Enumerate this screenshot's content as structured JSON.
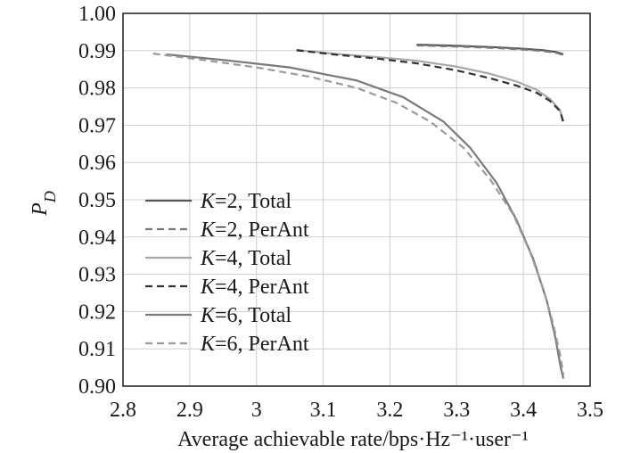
{
  "chart_data": {
    "type": "line",
    "title": "",
    "xlabel": "Average achievable rate/bps·Hz⁻¹·user⁻¹",
    "ylabel_main": "P",
    "ylabel_sub": "D",
    "xlim": [
      2.8,
      3.5
    ],
    "ylim": [
      0.9,
      1.0
    ],
    "x_ticks": [
      "2.8",
      "2.9",
      "3",
      "3.1",
      "3.2",
      "3.3",
      "3.4",
      "3.5"
    ],
    "y_ticks": [
      "0.90",
      "0.91",
      "0.92",
      "0.93",
      "0.94",
      "0.95",
      "0.96",
      "0.97",
      "0.98",
      "0.99",
      "1.00"
    ],
    "grid": true,
    "legend_position": "bottom-left",
    "series": [
      {
        "k_label": "K",
        "k_value": "=2, Total",
        "color": "#555555",
        "dash": false,
        "x": [
          3.24,
          3.3,
          3.36,
          3.4,
          3.43,
          3.45,
          3.46
        ],
        "y": [
          0.9916,
          0.9913,
          0.9909,
          0.9905,
          0.9901,
          0.9896,
          0.989
        ]
      },
      {
        "k_label": "K",
        "k_value": "=2, PerAnt",
        "color": "#777777",
        "dash": true,
        "x": [
          3.24,
          3.3,
          3.36,
          3.4,
          3.43,
          3.45,
          3.46
        ],
        "y": [
          0.9914,
          0.9911,
          0.9907,
          0.9903,
          0.9899,
          0.9894,
          0.9888
        ]
      },
      {
        "k_label": "K",
        "k_value": "=4, Total",
        "color": "#a8a8a8",
        "dash": false,
        "x": [
          3.06,
          3.12,
          3.18,
          3.24,
          3.3,
          3.35,
          3.39,
          3.42,
          3.44,
          3.455,
          3.46
        ],
        "y": [
          0.9902,
          0.9891,
          0.9883,
          0.9873,
          0.9857,
          0.9838,
          0.9817,
          0.9795,
          0.977,
          0.974,
          0.971
        ]
      },
      {
        "k_label": "K",
        "k_value": "=4, PerAnt",
        "color": "#333333",
        "dash": true,
        "x": [
          3.06,
          3.12,
          3.18,
          3.24,
          3.3,
          3.35,
          3.39,
          3.42,
          3.44,
          3.455,
          3.46
        ],
        "y": [
          0.9901,
          0.9889,
          0.9879,
          0.9866,
          0.9847,
          0.9826,
          0.9806,
          0.9787,
          0.9765,
          0.9738,
          0.9706
        ]
      },
      {
        "k_label": "K",
        "k_value": "=6, Total",
        "color": "#7a7a7a",
        "dash": false,
        "x": [
          2.865,
          2.95,
          3.05,
          3.15,
          3.22,
          3.28,
          3.32,
          3.36,
          3.39,
          3.415,
          3.435,
          3.448,
          3.456,
          3.46
        ],
        "y": [
          0.989,
          0.9875,
          0.9855,
          0.982,
          0.9775,
          0.971,
          0.964,
          0.9545,
          0.9445,
          0.934,
          0.923,
          0.913,
          0.905,
          0.902
        ]
      },
      {
        "k_label": "K",
        "k_value": "=6, PerAnt",
        "color": "#9a9a9a",
        "dash": true,
        "x": [
          2.845,
          2.92,
          3.0,
          3.08,
          3.15,
          3.21,
          3.26,
          3.31,
          3.35,
          3.385,
          3.41,
          3.43,
          3.445,
          3.455,
          3.46
        ],
        "y": [
          0.9892,
          0.9875,
          0.9855,
          0.983,
          0.98,
          0.976,
          0.971,
          0.964,
          0.9555,
          0.946,
          0.936,
          0.926,
          0.9165,
          0.9085,
          0.903
        ]
      }
    ]
  }
}
